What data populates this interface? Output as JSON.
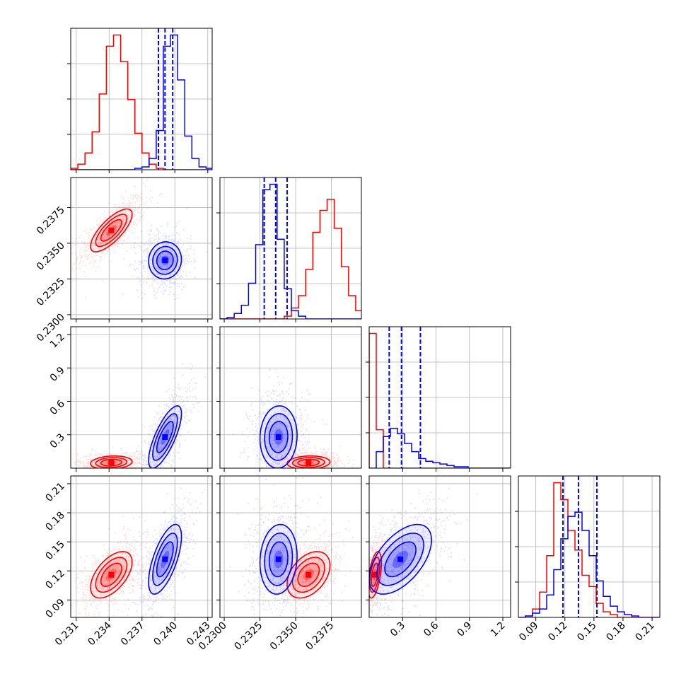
{
  "chart_data": {
    "type": "corner",
    "title": "",
    "grid": true,
    "colors": {
      "series_a": "#ff0000",
      "series_b": "#0000ff"
    },
    "parameters": [
      {
        "range": [
          0.2305,
          0.2434
        ],
        "ticks": [
          "0.231",
          "0.234",
          "0.237",
          "0.240",
          "0.243"
        ],
        "tick_values": [
          0.231,
          0.234,
          0.237,
          0.24,
          0.243
        ]
      },
      {
        "range": [
          0.2297,
          0.2396
        ],
        "ticks": [
          "0.2300",
          "0.2325",
          "0.2350",
          "0.2375"
        ],
        "tick_values": [
          0.23,
          0.2325,
          0.235,
          0.2375
        ]
      },
      {
        "range": [
          0.0,
          1.27
        ],
        "ticks": [
          "0.3",
          "0.6",
          "0.9",
          "1.2"
        ],
        "tick_values": [
          0.3,
          0.6,
          0.9,
          1.2
        ]
      },
      {
        "range": [
          0.072,
          0.218
        ],
        "ticks": [
          "0.09",
          "0.12",
          "0.15",
          "0.18",
          "0.21"
        ],
        "tick_values": [
          0.09,
          0.12,
          0.15,
          0.18,
          0.21
        ]
      }
    ],
    "series": [
      {
        "color": "#ff0000",
        "marginals": [
          {
            "edges_start": 0.2305,
            "bin_width": 0.00065,
            "counts": [
              1,
              4,
              12,
              27,
              54,
              88,
              96,
              77,
              50,
              26,
              12,
              4,
              1,
              0,
              0,
              0,
              0,
              0,
              0,
              0
            ]
          },
          {
            "edges_start": 0.2297,
            "bin_width": 0.0005,
            "counts": [
              0,
              0,
              0,
              0,
              0,
              0,
              0,
              0,
              0,
              2,
              8,
              17,
              36,
              63,
              79,
              87,
              66,
              38,
              17,
              6
            ]
          },
          {
            "edges_start": 0.0,
            "bin_width": 0.0635,
            "counts": [
              98,
              28,
              0,
              0,
              0,
              0,
              0,
              0,
              0,
              0,
              0,
              0,
              0,
              0,
              0,
              0,
              0,
              0,
              0,
              0
            ]
          },
          {
            "edges_start": 0.072,
            "bin_width": 0.0073,
            "counts": [
              0,
              1,
              6,
              18,
              44,
              96,
              84,
              62,
              48,
              30,
              22,
              10,
              4,
              2,
              0,
              0,
              0,
              0,
              0,
              0
            ]
          }
        ],
        "centers": [
          0.2342,
          0.2359,
          0.05,
          0.116
        ],
        "sigma": [
          0.00095,
          0.00075,
          0.03,
          0.012
        ],
        "correlation": [
          [
            1,
            0.75,
            0.15,
            0.55
          ],
          [
            0.75,
            1,
            0.1,
            0.4
          ],
          [
            0.15,
            0.1,
            1,
            0.5
          ],
          [
            0.55,
            0.4,
            0.5,
            1
          ]
        ]
      },
      {
        "color": "#0000ff",
        "marginals": [
          {
            "edges_start": 0.2305,
            "bin_width": 0.00065,
            "counts": [
              0,
              0,
              0,
              0,
              0,
              0,
              0,
              0,
              0,
              1,
              2,
              8,
              28,
              88,
              96,
              64,
              24,
              8,
              2,
              1
            ]
          },
          {
            "edges_start": 0.2297,
            "bin_width": 0.0005,
            "counts": [
              0,
              1,
              4,
              10,
              26,
              54,
              94,
              98,
              58,
              22,
              6,
              2,
              0,
              0,
              0,
              0,
              0,
              0,
              0,
              0
            ]
          },
          {
            "edges_start": 0.0,
            "bin_width": 0.0635,
            "counts": [
              0,
              12,
              23,
              29,
              25,
              18,
              12,
              7,
              5,
              4,
              3,
              2,
              1,
              1,
              0,
              0,
              0,
              0,
              0,
              0
            ]
          },
          {
            "edges_start": 0.072,
            "bin_width": 0.0073,
            "counts": [
              0,
              1,
              3,
              6,
              16,
              34,
              56,
              72,
              75,
              62,
              44,
              26,
              15,
              8,
              4,
              2,
              1,
              0,
              0,
              0
            ]
          }
        ],
        "centers": [
          0.2391,
          0.2338,
          0.28,
          0.132
        ],
        "sigma": [
          0.00075,
          0.00065,
          0.14,
          0.018
        ],
        "correlation": [
          [
            1,
            0.05,
            0.75,
            0.65
          ],
          [
            0.05,
            1,
            0.05,
            0.1
          ],
          [
            0.75,
            0.05,
            1,
            0.55
          ],
          [
            0.65,
            0.1,
            0.55,
            1
          ]
        ]
      }
    ],
    "quantile_lines": [
      {
        "color": "#0000ff",
        "values": [
          0.2385,
          0.2391,
          0.2398
        ]
      },
      {
        "color": "#0000ff",
        "values": [
          0.2328,
          0.2336,
          0.2344
        ]
      },
      {
        "color": "#0000ff",
        "values": [
          0.18,
          0.29,
          0.46
        ]
      },
      {
        "color": "#0000ff",
        "values": [
          0.118,
          0.134,
          0.153
        ]
      }
    ]
  }
}
